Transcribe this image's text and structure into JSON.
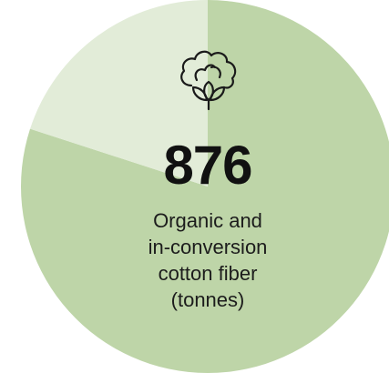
{
  "chart_data": {
    "type": "pie",
    "slices": [
      {
        "value": 80,
        "color": "#bed5a8"
      },
      {
        "value": 20,
        "color": "#e2ecd8"
      }
    ],
    "headline_value": "876",
    "label_lines": [
      "Organic and",
      "in-conversion",
      "cotton fiber",
      "(tonnes)"
    ]
  },
  "icon": "cotton-plant-icon",
  "colors": {
    "major_slice": "#bed5a8",
    "minor_slice": "#e2ecd8",
    "text": "#111111"
  }
}
